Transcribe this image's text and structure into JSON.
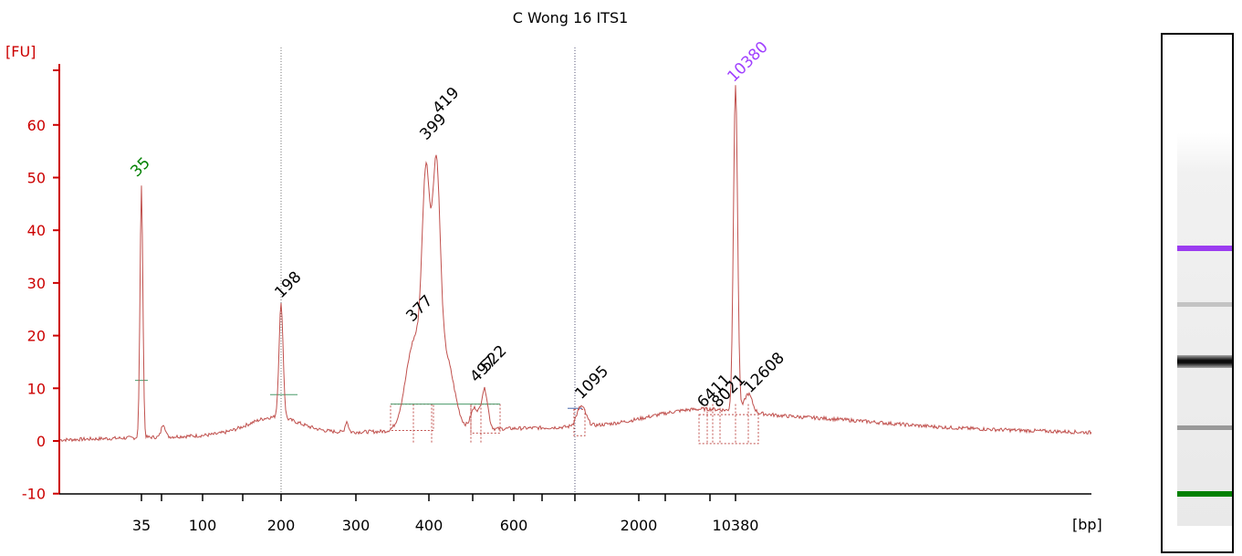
{
  "chart_data": {
    "type": "line",
    "title": "C Wong 16 ITS1",
    "ylabel": "[FU]",
    "xlabel": "[bp]",
    "ylim": [
      -10,
      70
    ],
    "yticks": [
      "-10",
      "0",
      "10",
      "20",
      "30",
      "40",
      "50",
      "60"
    ],
    "xticks": [
      "35",
      "100",
      "200",
      "300",
      "400",
      "600",
      "2000",
      "10380"
    ],
    "colors": {
      "axis": "#cc0000",
      "trace": "#c0504d",
      "marker_lower": "#008000",
      "marker_upper": "#a040ff",
      "baseline": "#4a9a6a"
    },
    "grid": false,
    "peaks": [
      {
        "label": "35",
        "x_bp": 35,
        "fu": 48,
        "color": "green"
      },
      {
        "label": "198",
        "x_bp": 198,
        "fu": 25,
        "color": "black"
      },
      {
        "label": "377",
        "x_bp": 377,
        "fu": 21,
        "color": "black"
      },
      {
        "label": "399",
        "x_bp": 399,
        "fu": 56,
        "color": "black"
      },
      {
        "label": "419",
        "x_bp": 419,
        "fu": 59,
        "color": "black"
      },
      {
        "label": "497",
        "x_bp": 497,
        "fu": 9,
        "color": "black"
      },
      {
        "label": "522",
        "x_bp": 522,
        "fu": 11,
        "color": "black"
      },
      {
        "label": "1095",
        "x_bp": 1095,
        "fu": 6,
        "color": "black"
      },
      {
        "label": "6411",
        "x_bp": 6411,
        "fu": 5,
        "color": "black"
      },
      {
        "label": "8021",
        "x_bp": 8021,
        "fu": 5,
        "color": "black"
      },
      {
        "label": "10380",
        "x_bp": 10380,
        "fu": 67,
        "color": "purple"
      },
      {
        "label": "12608",
        "x_bp": 12608,
        "fu": 7,
        "color": "black"
      }
    ]
  },
  "gel": {
    "bands": [
      {
        "position": 0.435,
        "intensity": 1.0,
        "color": "#9b3cf0"
      },
      {
        "position": 0.55,
        "intensity": 0.18,
        "color": "#000000"
      },
      {
        "position": 0.665,
        "intensity": 0.95,
        "color": "#000000"
      },
      {
        "position": 0.8,
        "intensity": 0.35,
        "color": "#000000"
      },
      {
        "position": 0.935,
        "intensity": 1.0,
        "color": "#008000"
      }
    ]
  }
}
